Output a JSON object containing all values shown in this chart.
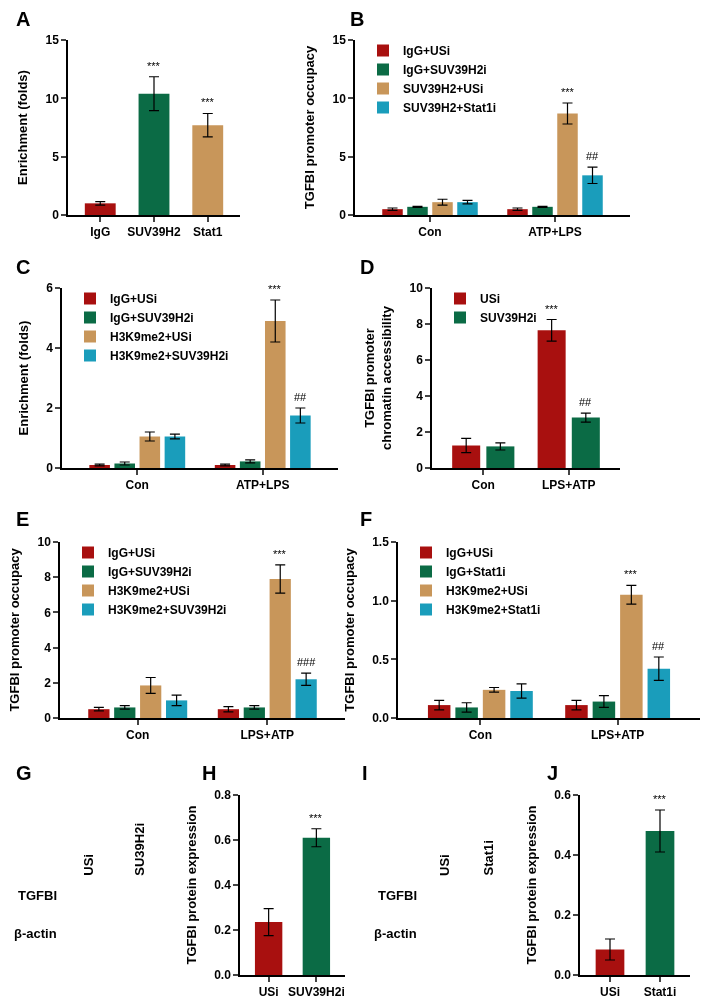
{
  "chart_data": [
    {
      "type": "bar",
      "title": "A",
      "ylabel": "Enrichment (folds)",
      "categories": [
        "IgG",
        "SUV39H2",
        "Stat1"
      ],
      "values": [
        1.0,
        10.4,
        7.7
      ],
      "colors": [
        "#a8100f",
        "#0b6b45",
        "#c8965a"
      ],
      "errors": [
        0.15,
        1.45,
        1.0
      ],
      "value_labels": [
        null,
        "***",
        "***"
      ],
      "ylim": [
        0,
        15
      ],
      "yticks": [
        0,
        5,
        10,
        15
      ]
    },
    {
      "type": "bar",
      "title": "B",
      "ylabel": "TGFBI promoter occupacy",
      "categories": [
        "Con",
        "ATP+LPS"
      ],
      "legend": "top left",
      "ylim": [
        0,
        15
      ],
      "yticks": [
        0,
        5,
        10,
        15
      ],
      "series": [
        {
          "name": "IgG+USi",
          "color": "#a8100f",
          "values": [
            0.5,
            0.5
          ],
          "errors": [
            0.1,
            0.1
          ]
        },
        {
          "name": "IgG+SUV39H2i",
          "color": "#0b6b45",
          "values": [
            0.7,
            0.7
          ],
          "errors": [
            0.05,
            0.05
          ]
        },
        {
          "name": "SUV39H2+USi",
          "color": "#c8965a",
          "values": [
            1.1,
            8.7
          ],
          "errors": [
            0.25,
            0.9
          ],
          "value_labels": [
            null,
            "***"
          ]
        },
        {
          "name": "SUV39H2+Stat1i",
          "color": "#1a9dbb",
          "values": [
            1.1,
            3.4
          ],
          "errors": [
            0.15,
            0.7
          ],
          "value_labels": [
            null,
            "##"
          ]
        }
      ]
    },
    {
      "type": "bar",
      "title": "C",
      "ylabel": "Enrichment (folds)",
      "categories": [
        "Con",
        "ATP+LPS"
      ],
      "legend": "top left",
      "ylim": [
        0,
        6
      ],
      "yticks": [
        0,
        2,
        4,
        6
      ],
      "series": [
        {
          "name": "IgG+USi",
          "color": "#a8100f",
          "values": [
            0.1,
            0.1
          ],
          "errors": [
            0.03,
            0.03
          ]
        },
        {
          "name": "IgG+SUV39H2i",
          "color": "#0b6b45",
          "values": [
            0.15,
            0.22
          ],
          "errors": [
            0.05,
            0.05
          ]
        },
        {
          "name": "H3K9me2+USi",
          "color": "#c8965a",
          "values": [
            1.05,
            4.9
          ],
          "errors": [
            0.15,
            0.7
          ],
          "value_labels": [
            null,
            "***"
          ]
        },
        {
          "name": "H3K9me2+SUV39H2i",
          "color": "#1a9dbb",
          "values": [
            1.05,
            1.75
          ],
          "errors": [
            0.08,
            0.25
          ],
          "value_labels": [
            null,
            "##"
          ]
        }
      ]
    },
    {
      "type": "bar",
      "title": "D",
      "ylabel": "TGFBI promoter\nchromatin accessibility",
      "categories": [
        "Con",
        "LPS+ATP"
      ],
      "legend": "top left",
      "ylim": [
        0,
        10
      ],
      "yticks": [
        0,
        2,
        4,
        6,
        8,
        10
      ],
      "series": [
        {
          "name": "USi",
          "color": "#a8100f",
          "values": [
            1.25,
            7.65
          ],
          "errors": [
            0.4,
            0.6
          ],
          "value_labels": [
            null,
            "***"
          ]
        },
        {
          "name": "SUV39H2i",
          "color": "#0b6b45",
          "values": [
            1.2,
            2.8
          ],
          "errors": [
            0.2,
            0.25
          ],
          "value_labels": [
            null,
            "##"
          ]
        }
      ]
    },
    {
      "type": "bar",
      "title": "E",
      "ylabel": "TGFBI promoter occupacy",
      "categories": [
        "Con",
        "LPS+ATP"
      ],
      "legend": "top left",
      "ylim": [
        0,
        10
      ],
      "yticks": [
        0,
        2,
        4,
        6,
        8,
        10
      ],
      "series": [
        {
          "name": "IgG+USi",
          "color": "#a8100f",
          "values": [
            0.5,
            0.5
          ],
          "errors": [
            0.1,
            0.15
          ]
        },
        {
          "name": "IgG+SUV39H2i",
          "color": "#0b6b45",
          "values": [
            0.6,
            0.6
          ],
          "errors": [
            0.1,
            0.1
          ]
        },
        {
          "name": "H3K9me2+USi",
          "color": "#c8965a",
          "values": [
            1.85,
            7.9
          ],
          "errors": [
            0.45,
            0.8
          ],
          "value_labels": [
            null,
            "***"
          ]
        },
        {
          "name": "H3K9me2+SUV39H2i",
          "color": "#1a9dbb",
          "values": [
            1.0,
            2.2
          ],
          "errors": [
            0.3,
            0.35
          ],
          "value_labels": [
            null,
            "###"
          ]
        }
      ]
    },
    {
      "type": "bar",
      "title": "F",
      "ylabel": "TGFBI promoter occupacy",
      "categories": [
        "Con",
        "LPS+ATP"
      ],
      "legend": "top left",
      "ylim": [
        0,
        1.5
      ],
      "yticks": [
        {
          "value": 0,
          "label": "0.0"
        },
        {
          "value": 0.5,
          "label": "0.5"
        },
        {
          "value": 1,
          "label": "1.0"
        },
        {
          "value": 1.5,
          "label": "1.5"
        }
      ],
      "series": [
        {
          "name": "IgG+USi",
          "color": "#a8100f",
          "values": [
            0.11,
            0.11
          ],
          "errors": [
            0.04,
            0.04
          ]
        },
        {
          "name": "IgG+Stat1i",
          "color": "#0b6b45",
          "values": [
            0.09,
            0.14
          ],
          "errors": [
            0.04,
            0.05
          ]
        },
        {
          "name": "H3K9me2+USi",
          "color": "#c8965a",
          "values": [
            0.24,
            1.05
          ],
          "errors": [
            0.02,
            0.08
          ],
          "value_labels": [
            null,
            "***"
          ]
        },
        {
          "name": "H3K9me2+Stat1i",
          "color": "#1a9dbb",
          "values": [
            0.23,
            0.42
          ],
          "errors": [
            0.06,
            0.1
          ],
          "value_labels": [
            null,
            "##"
          ]
        }
      ]
    },
    {
      "type": "other",
      "title": "G",
      "annotations": [
        "USi",
        "SU39H2i",
        "TGFBI",
        "β-actin"
      ]
    },
    {
      "type": "bar",
      "title": "H",
      "ylabel": "TGFBI protein expression",
      "categories": [
        "USi",
        "SUV39H2i"
      ],
      "values": [
        0.235,
        0.61
      ],
      "colors": [
        "#a8100f",
        "#0b6b45"
      ],
      "errors": [
        0.06,
        0.04
      ],
      "value_labels": [
        null,
        "***"
      ],
      "ylim": [
        0,
        0.8
      ],
      "yticks": [
        {
          "value": 0,
          "label": "0.0"
        },
        {
          "value": 0.2,
          "label": "0.2"
        },
        {
          "value": 0.4,
          "label": "0.4"
        },
        {
          "value": 0.6,
          "label": "0.6"
        },
        {
          "value": 0.8,
          "label": "0.8"
        }
      ]
    },
    {
      "type": "other",
      "title": "I",
      "annotations": [
        "USi",
        "Stat1i",
        "TGFBI",
        "β-actin"
      ]
    },
    {
      "type": "bar",
      "title": "J",
      "ylabel": "TGFBI protein expression",
      "categories": [
        "USi",
        "Stat1i"
      ],
      "values": [
        0.085,
        0.48
      ],
      "colors": [
        "#a8100f",
        "#0b6b45"
      ],
      "errors": [
        0.035,
        0.07
      ],
      "value_labels": [
        null,
        "***"
      ],
      "ylim": [
        0,
        0.6
      ],
      "yticks": [
        {
          "value": 0,
          "label": "0.0"
        },
        {
          "value": 0.2,
          "label": "0.2"
        },
        {
          "value": 0.4,
          "label": "0.4"
        },
        {
          "value": 0.6,
          "label": "0.6"
        }
      ]
    }
  ]
}
